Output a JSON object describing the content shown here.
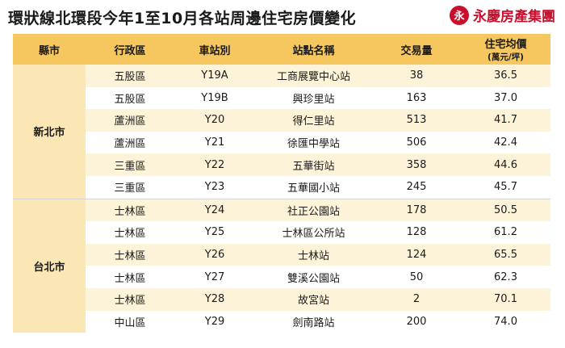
{
  "title": "環狀線北環段今年1至10月各站周邊住宅房價變化",
  "brand": {
    "logo_char": "永",
    "name": "永慶房產集團"
  },
  "headers": {
    "county": "縣市",
    "district": "行政區",
    "station_id": "車站別",
    "station_name": "站點名稱",
    "volume": "交易量",
    "price": "住宅均價",
    "price_unit": "(萬元/坪)"
  },
  "groups": [
    {
      "county": "新北市",
      "rows": [
        {
          "district": "五股區",
          "station_id": "Y19A",
          "station_name": "工商展覽中心站",
          "volume": "38",
          "price": "36.5"
        },
        {
          "district": "五股區",
          "station_id": "Y19B",
          "station_name": "興珍里站",
          "volume": "163",
          "price": "37.0"
        },
        {
          "district": "蘆洲區",
          "station_id": "Y20",
          "station_name": "得仁里站",
          "volume": "513",
          "price": "41.7"
        },
        {
          "district": "蘆洲區",
          "station_id": "Y21",
          "station_name": "徐匯中學站",
          "volume": "506",
          "price": "42.4"
        },
        {
          "district": "三重區",
          "station_id": "Y22",
          "station_name": "五華街站",
          "volume": "358",
          "price": "44.6"
        },
        {
          "district": "三重區",
          "station_id": "Y23",
          "station_name": "五華國小站",
          "volume": "245",
          "price": "45.7"
        }
      ]
    },
    {
      "county": "台北市",
      "rows": [
        {
          "district": "士林區",
          "station_id": "Y24",
          "station_name": "社正公園站",
          "volume": "178",
          "price": "50.5"
        },
        {
          "district": "士林區",
          "station_id": "Y25",
          "station_name": "士林區公所站",
          "volume": "128",
          "price": "61.2"
        },
        {
          "district": "士林區",
          "station_id": "Y26",
          "station_name": "士林站",
          "volume": "124",
          "price": "65.5"
        },
        {
          "district": "士林區",
          "station_id": "Y27",
          "station_name": "雙溪公園站",
          "volume": "50",
          "price": "62.3"
        },
        {
          "district": "士林區",
          "station_id": "Y28",
          "station_name": "故宮站",
          "volume": "2",
          "price": "70.1"
        },
        {
          "district": "中山區",
          "station_id": "Y29",
          "station_name": "劍南路站",
          "volume": "200",
          "price": "74.0"
        }
      ]
    }
  ]
}
